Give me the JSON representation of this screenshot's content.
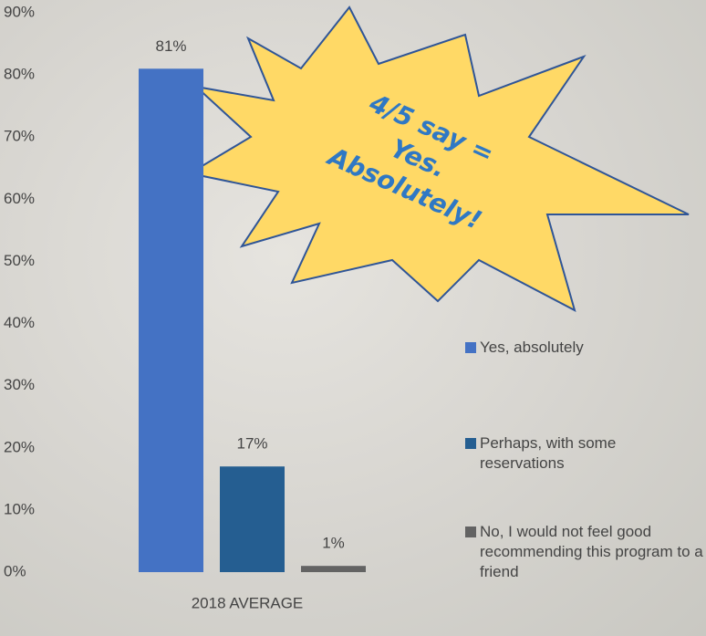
{
  "chart_data": {
    "type": "bar",
    "categories": [
      "2018 AVERAGE"
    ],
    "series": [
      {
        "name": "Yes, absolutely",
        "color": "#4472c4",
        "values": [
          81
        ],
        "value_labels": [
          "81%"
        ]
      },
      {
        "name": "Perhaps, with some reservations",
        "color": "#255e91",
        "values": [
          17
        ],
        "value_labels": [
          "17%"
        ]
      },
      {
        "name": "No, I would not feel good recommending this program to a friend",
        "color": "#636363",
        "values": [
          1
        ],
        "value_labels": [
          "1%"
        ]
      }
    ],
    "ylim": [
      0,
      90
    ],
    "yticks": [
      {
        "value": 0,
        "label": "0%"
      },
      {
        "value": 10,
        "label": "10%"
      },
      {
        "value": 20,
        "label": "20%"
      },
      {
        "value": 30,
        "label": "30%"
      },
      {
        "value": 40,
        "label": "40%"
      },
      {
        "value": 50,
        "label": "50%"
      },
      {
        "value": 60,
        "label": "60%"
      },
      {
        "value": 70,
        "label": "70%"
      },
      {
        "value": 80,
        "label": "80%"
      },
      {
        "value": 90,
        "label": "90%"
      }
    ],
    "grid": false,
    "legend": "right",
    "annotation": [
      "4/5 say =",
      "Yes.",
      "Absolutely!"
    ]
  }
}
